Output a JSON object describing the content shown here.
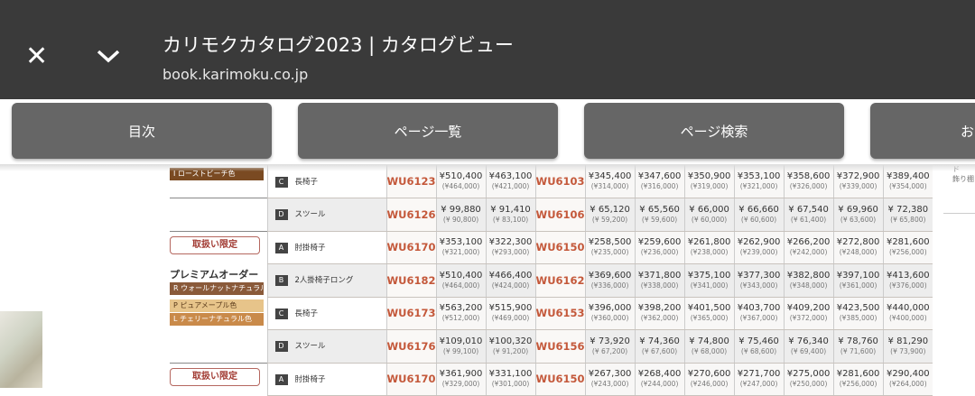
{
  "header": {
    "close_icon": "close-icon",
    "collapse_icon": "chevron-down-icon",
    "title": "カリモクカタログ2023 | カタログビュー",
    "url": "book.karimoku.co.jp"
  },
  "toolbar": {
    "buttons": [
      "目次",
      "ページ一覧",
      "ページ検索",
      "お"
    ]
  },
  "side_text": "ド\n飾り棚",
  "labels": {
    "roast_beech": "I ローストビーチ色",
    "limited": "取扱い限定",
    "premium": "プレミアムオーダー",
    "walnut": "R ウォールナットナチュラル色",
    "maple": "P ピュアメープル色",
    "cherry": "L チェリーナチュラル色"
  },
  "colors": {
    "code": "#c4583a",
    "roast_beech": "#7a4a22",
    "walnut": "#8a5a3a",
    "maple": "#e7c48a",
    "cherry": "#c98a4a"
  },
  "rows": [
    {
      "badge": "C",
      "item": "長椅子",
      "code1": "WU6123",
      "p1": [
        [
          "¥510,400",
          "(¥464,000)"
        ],
        [
          "¥463,100",
          "(¥421,000)"
        ]
      ],
      "code2": "WU6103",
      "p2": [
        [
          "¥345,400",
          "(¥314,000)"
        ],
        [
          "¥347,600",
          "(¥316,000)"
        ],
        [
          "¥350,900",
          "(¥319,000)"
        ],
        [
          "¥353,100",
          "(¥321,000)"
        ],
        [
          "¥358,600",
          "(¥326,000)"
        ],
        [
          "¥372,900",
          "(¥339,000)"
        ],
        [
          "¥389,400",
          "(¥354,000)"
        ]
      ]
    },
    {
      "badge": "D",
      "item": "スツール",
      "code1": "WU6126",
      "p1": [
        [
          "¥ 99,880",
          "(¥ 90,800)"
        ],
        [
          "¥ 91,410",
          "(¥ 83,100)"
        ]
      ],
      "code2": "WU6106",
      "p2": [
        [
          "¥ 65,120",
          "(¥ 59,200)"
        ],
        [
          "¥ 65,560",
          "(¥ 59,600)"
        ],
        [
          "¥ 66,000",
          "(¥ 60,000)"
        ],
        [
          "¥ 66,660",
          "(¥ 60,600)"
        ],
        [
          "¥ 67,540",
          "(¥ 61,400)"
        ],
        [
          "¥ 69,960",
          "(¥ 63,600)"
        ],
        [
          "¥ 72,380",
          "(¥ 65,800)"
        ]
      ]
    },
    {
      "badge": "A",
      "item": "肘掛椅子",
      "code1": "WU6170",
      "p1": [
        [
          "¥353,100",
          "(¥321,000)"
        ],
        [
          "¥322,300",
          "(¥293,000)"
        ]
      ],
      "code2": "WU6150",
      "p2": [
        [
          "¥258,500",
          "(¥235,000)"
        ],
        [
          "¥259,600",
          "(¥236,000)"
        ],
        [
          "¥261,800",
          "(¥238,000)"
        ],
        [
          "¥262,900",
          "(¥239,000)"
        ],
        [
          "¥266,200",
          "(¥242,000)"
        ],
        [
          "¥272,800",
          "(¥248,000)"
        ],
        [
          "¥281,600",
          "(¥256,000)"
        ]
      ]
    },
    {
      "badge": "B",
      "item": "2人掛椅子ロング",
      "code1": "WU6182",
      "p1": [
        [
          "¥510,400",
          "(¥464,000)"
        ],
        [
          "¥466,400",
          "(¥424,000)"
        ]
      ],
      "code2": "WU6162",
      "p2": [
        [
          "¥369,600",
          "(¥336,000)"
        ],
        [
          "¥371,800",
          "(¥338,000)"
        ],
        [
          "¥375,100",
          "(¥341,000)"
        ],
        [
          "¥377,300",
          "(¥343,000)"
        ],
        [
          "¥382,800",
          "(¥348,000)"
        ],
        [
          "¥397,100",
          "(¥361,000)"
        ],
        [
          "¥413,600",
          "(¥376,000)"
        ]
      ]
    },
    {
      "badge": "C",
      "item": "長椅子",
      "code1": "WU6173",
      "p1": [
        [
          "¥563,200",
          "(¥512,000)"
        ],
        [
          "¥515,900",
          "(¥469,000)"
        ]
      ],
      "code2": "WU6153",
      "p2": [
        [
          "¥396,000",
          "(¥360,000)"
        ],
        [
          "¥398,200",
          "(¥362,000)"
        ],
        [
          "¥401,500",
          "(¥365,000)"
        ],
        [
          "¥403,700",
          "(¥367,000)"
        ],
        [
          "¥409,200",
          "(¥372,000)"
        ],
        [
          "¥423,500",
          "(¥385,000)"
        ],
        [
          "¥440,000",
          "(¥400,000)"
        ]
      ]
    },
    {
      "badge": "D",
      "item": "スツール",
      "code1": "WU6176",
      "p1": [
        [
          "¥109,010",
          "(¥ 99,100)"
        ],
        [
          "¥100,320",
          "(¥ 91,200)"
        ]
      ],
      "code2": "WU6156",
      "p2": [
        [
          "¥ 73,920",
          "(¥ 67,200)"
        ],
        [
          "¥ 74,360",
          "(¥ 67,600)"
        ],
        [
          "¥ 74,800",
          "(¥ 68,000)"
        ],
        [
          "¥ 75,460",
          "(¥ 68,600)"
        ],
        [
          "¥ 76,340",
          "(¥ 69,400)"
        ],
        [
          "¥ 78,760",
          "(¥ 71,600)"
        ],
        [
          "¥ 81,290",
          "(¥ 73,900)"
        ]
      ]
    },
    {
      "badge": "A",
      "item": "肘掛椅子",
      "code1": "WU6170",
      "p1": [
        [
          "¥361,900",
          "(¥329,000)"
        ],
        [
          "¥331,100",
          "(¥301,000)"
        ]
      ],
      "code2": "WU6150",
      "p2": [
        [
          "¥267,300",
          "(¥243,000)"
        ],
        [
          "¥268,400",
          "(¥244,000)"
        ],
        [
          "¥270,600",
          "(¥246,000)"
        ],
        [
          "¥271,700",
          "(¥247,000)"
        ],
        [
          "¥275,000",
          "(¥250,000)"
        ],
        [
          "¥281,600",
          "(¥256,000)"
        ],
        [
          "¥290,400",
          "(¥264,000)"
        ]
      ]
    }
  ]
}
